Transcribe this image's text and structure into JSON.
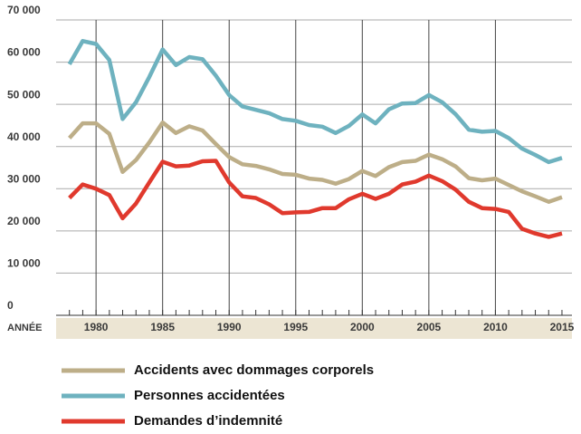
{
  "chart_data": {
    "type": "line",
    "x": [
      1978,
      1979,
      1980,
      1981,
      1982,
      1983,
      1984,
      1985,
      1986,
      1987,
      1988,
      1989,
      1990,
      1991,
      1992,
      1993,
      1994,
      1995,
      1996,
      1997,
      1998,
      1999,
      2000,
      2001,
      2002,
      2003,
      2004,
      2005,
      2006,
      2007,
      2008,
      2009,
      2010,
      2011,
      2012,
      2013,
      2014,
      2015
    ],
    "x_label": "ANNÉE",
    "xlim": [
      1977,
      2015.75
    ],
    "xticks": [
      1980,
      1985,
      1990,
      1995,
      2000,
      2005,
      2010,
      2015
    ],
    "ylim": [
      0,
      70000
    ],
    "yticks": [
      {
        "value": 0,
        "label": "0"
      },
      {
        "value": 10000,
        "label": "10 000"
      },
      {
        "value": 20000,
        "label": "20 000"
      },
      {
        "value": 30000,
        "label": "30 000"
      },
      {
        "value": 40000,
        "label": "40 000"
      },
      {
        "value": 50000,
        "label": "50 000"
      },
      {
        "value": 60000,
        "label": "60 000"
      },
      {
        "value": 70000,
        "label": "70 000"
      }
    ],
    "grid": true,
    "series": [
      {
        "name": "Accidents avec dommages corporels",
        "color": "#bdae88",
        "values": [
          42000,
          45500,
          45500,
          43000,
          34000,
          36800,
          41000,
          45700,
          43200,
          44800,
          43800,
          40600,
          37500,
          35800,
          35400,
          34600,
          33500,
          33300,
          32400,
          32100,
          31200,
          32300,
          34200,
          33000,
          35100,
          36300,
          36600,
          38100,
          37000,
          35300,
          32500,
          32000,
          32400,
          30900,
          29400,
          28200,
          26900,
          28000
        ]
      },
      {
        "name": "Personnes accidentées",
        "color": "#6eb2bf",
        "values": [
          59500,
          65000,
          64300,
          60500,
          46500,
          50500,
          56500,
          63000,
          59300,
          61200,
          60700,
          56800,
          52200,
          49500,
          48700,
          47900,
          46500,
          46100,
          45100,
          44700,
          43200,
          44900,
          47600,
          45500,
          48800,
          50200,
          50300,
          52200,
          50500,
          47700,
          44000,
          43500,
          43700,
          42000,
          39500,
          38000,
          36300,
          37300
        ]
      },
      {
        "name": "Demandes d’indemnité",
        "color": "#e0392d",
        "values": [
          27800,
          31000,
          30000,
          28500,
          23000,
          26500,
          31500,
          36400,
          35300,
          35500,
          36500,
          36600,
          31500,
          28200,
          27800,
          26300,
          24200,
          24400,
          24500,
          25400,
          25400,
          27500,
          28800,
          27600,
          28800,
          31000,
          31700,
          33100,
          31800,
          29800,
          26900,
          25400,
          25200,
          24500,
          20500,
          19400,
          18600,
          19400
        ]
      }
    ]
  }
}
